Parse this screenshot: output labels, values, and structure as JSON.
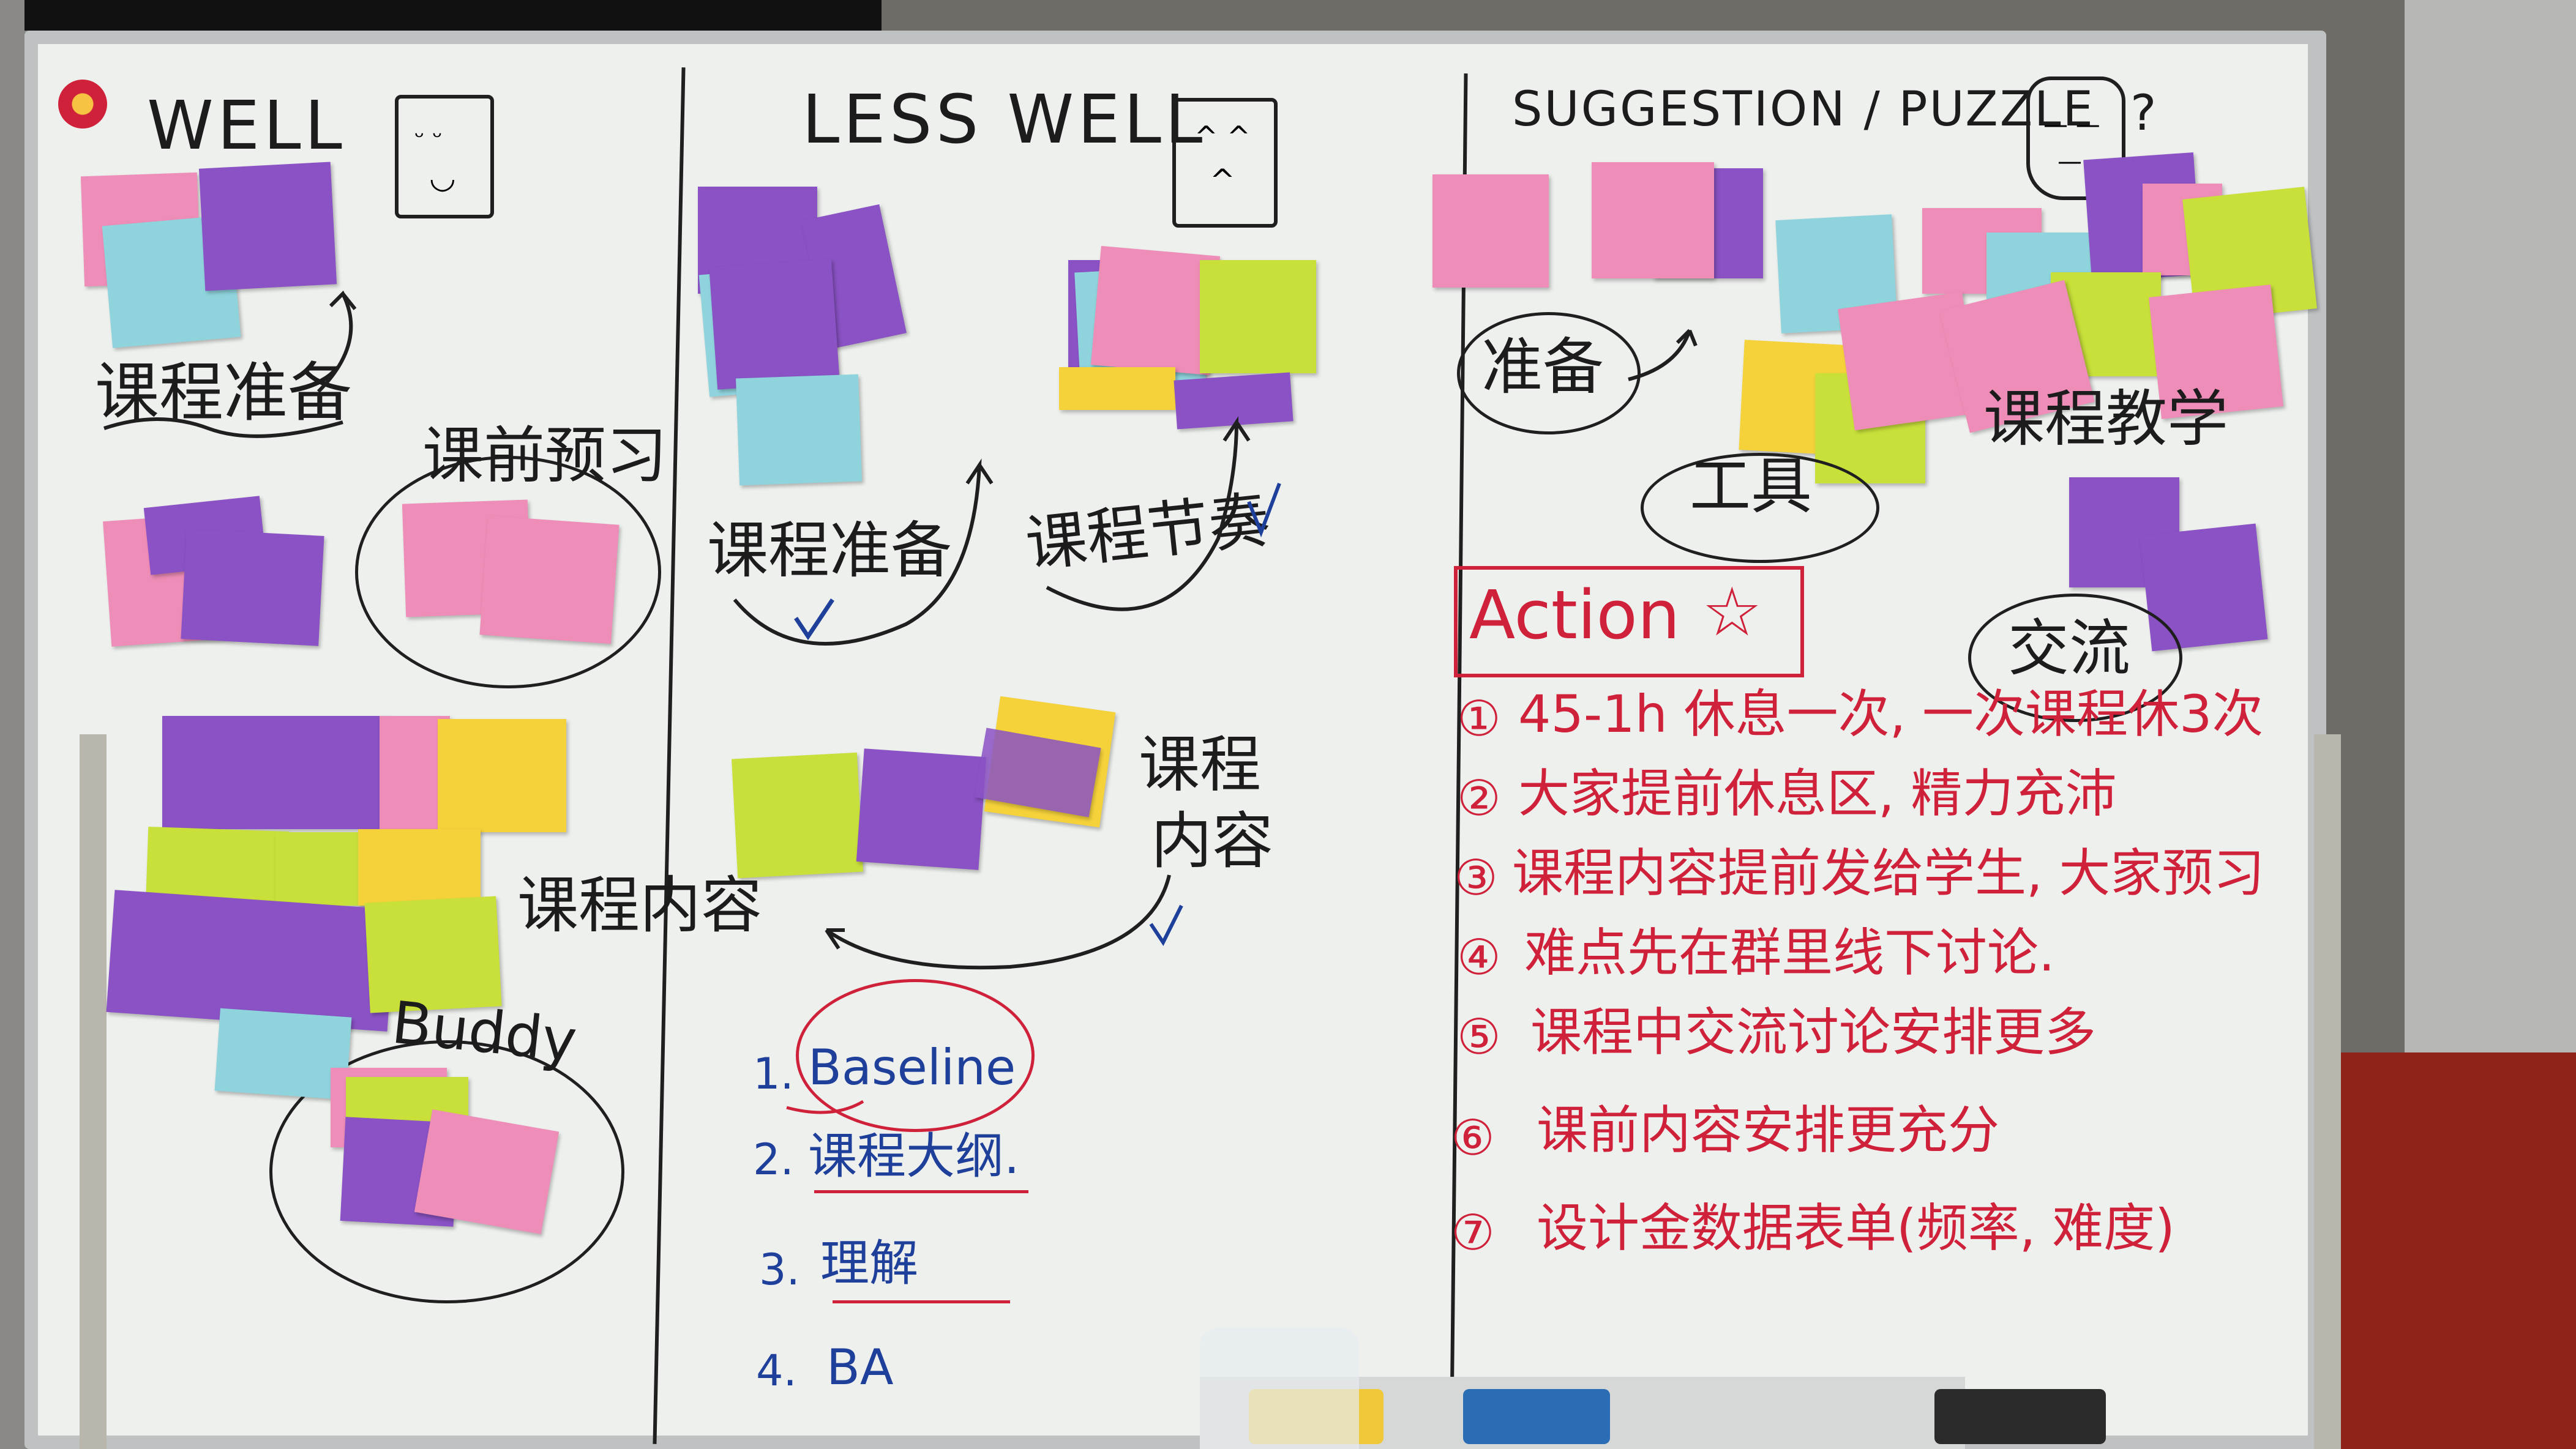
{
  "columns": {
    "well": {
      "heading": "WELL",
      "labels": [
        "课程准备",
        "课前预习",
        "课程内容",
        "Buddy"
      ]
    },
    "less_well": {
      "heading": "LESS WELL",
      "labels": [
        "课程准备",
        "课程节奏",
        "课程",
        "内容"
      ],
      "list": [
        {
          "num": "1.",
          "text": "Baseline"
        },
        {
          "num": "2.",
          "text": "课程大纲."
        },
        {
          "num": "3.",
          "text": "理解"
        },
        {
          "num": "4.",
          "text": "BA"
        }
      ]
    },
    "suggestion": {
      "heading": "SUGGESTION / PUZZLE",
      "question_mark": "?",
      "labels": [
        "准备",
        "工具",
        "课程教学",
        "交流"
      ]
    }
  },
  "actions": {
    "title": "Action",
    "star": "☆",
    "items": [
      {
        "num": "①",
        "text": "45-1h 休息一次, 一次课程休3次"
      },
      {
        "num": "②",
        "text": "大家提前休息区, 精力充沛"
      },
      {
        "num": "③",
        "text": "课程内容提前发给学生, 大家预习"
      },
      {
        "num": "④",
        "text": "难点先在群里线下讨论."
      },
      {
        "num": "⑤",
        "text": "课程中交流讨论安排更多"
      },
      {
        "num": "⑥",
        "text": "课前内容安排更充分"
      },
      {
        "num": "⑦",
        "text": "设计金数据表单(频率, 难度)"
      }
    ]
  },
  "colors": {
    "marker_black": "#1f1f1f",
    "marker_blue": "#1e3f9a",
    "marker_red": "#d0213a",
    "note_pink": "#ee8db7",
    "note_purple": "#8a52c4",
    "note_cyan": "#8fd3dc",
    "note_yellow": "#f5d23a",
    "note_lime": "#c9e03a"
  }
}
